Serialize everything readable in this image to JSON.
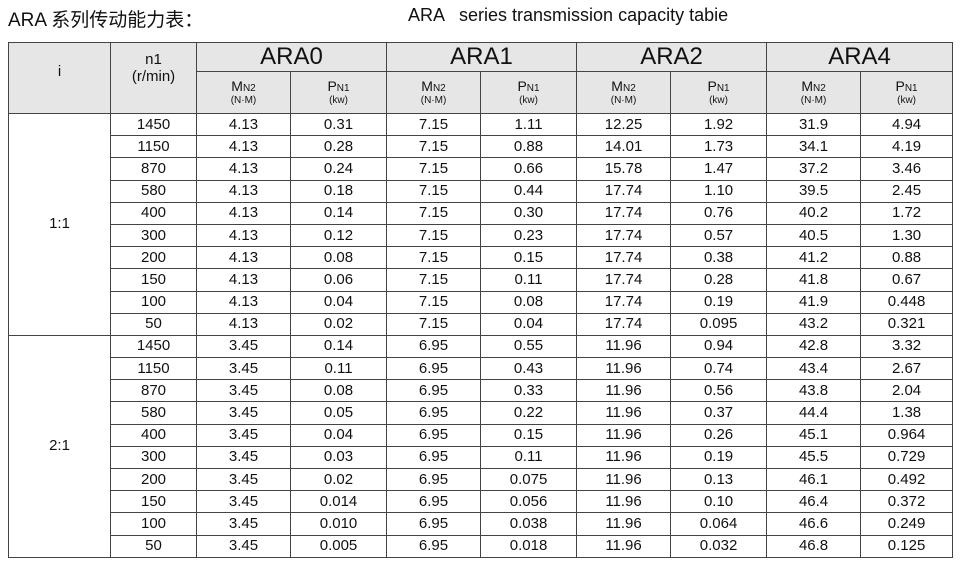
{
  "header": {
    "title_cn": "ARA 系列传动能力表：",
    "title_en": "ARA   series transmission capacity tabie"
  },
  "table": {
    "col_i": "i",
    "col_n1": "n1",
    "col_n1_unit": "(r/min)",
    "models": [
      "ARA0",
      "ARA1",
      "ARA2",
      "ARA4"
    ],
    "sub_headers": [
      {
        "symbol": "M",
        "subscript": "N2",
        "unit": "(N·M)"
      },
      {
        "symbol": "P",
        "subscript": "N1",
        "unit": "(kw)"
      }
    ],
    "groups": [
      {
        "ratio": "1:1",
        "rows": [
          [
            "1450",
            "4.13",
            "0.31",
            "7.15",
            "1.11",
            "12.25",
            "1.92",
            "31.9",
            "4.94"
          ],
          [
            "1150",
            "4.13",
            "0.28",
            "7.15",
            "0.88",
            "14.01",
            "1.73",
            "34.1",
            "4.19"
          ],
          [
            "870",
            "4.13",
            "0.24",
            "7.15",
            "0.66",
            "15.78",
            "1.47",
            "37.2",
            "3.46"
          ],
          [
            "580",
            "4.13",
            "0.18",
            "7.15",
            "0.44",
            "17.74",
            "1.10",
            "39.5",
            "2.45"
          ],
          [
            "400",
            "4.13",
            "0.14",
            "7.15",
            "0.30",
            "17.74",
            "0.76",
            "40.2",
            "1.72"
          ],
          [
            "300",
            "4.13",
            "0.12",
            "7.15",
            "0.23",
            "17.74",
            "0.57",
            "40.5",
            "1.30"
          ],
          [
            "200",
            "4.13",
            "0.08",
            "7.15",
            "0.15",
            "17.74",
            "0.38",
            "41.2",
            "0.88"
          ],
          [
            "150",
            "4.13",
            "0.06",
            "7.15",
            "0.11",
            "17.74",
            "0.28",
            "41.8",
            "0.67"
          ],
          [
            "100",
            "4.13",
            "0.04",
            "7.15",
            "0.08",
            "17.74",
            "0.19",
            "41.9",
            "0.448"
          ],
          [
            "50",
            "4.13",
            "0.02",
            "7.15",
            "0.04",
            "17.74",
            "0.095",
            "43.2",
            "0.321"
          ]
        ]
      },
      {
        "ratio": "2:1",
        "rows": [
          [
            "1450",
            "3.45",
            "0.14",
            "6.95",
            "0.55",
            "11.96",
            "0.94",
            "42.8",
            "3.32"
          ],
          [
            "1150",
            "3.45",
            "0.11",
            "6.95",
            "0.43",
            "11.96",
            "0.74",
            "43.4",
            "2.67"
          ],
          [
            "870",
            "3.45",
            "0.08",
            "6.95",
            "0.33",
            "11.96",
            "0.56",
            "43.8",
            "2.04"
          ],
          [
            "580",
            "3.45",
            "0.05",
            "6.95",
            "0.22",
            "11.96",
            "0.37",
            "44.4",
            "1.38"
          ],
          [
            "400",
            "3.45",
            "0.04",
            "6.95",
            "0.15",
            "11.96",
            "0.26",
            "45.1",
            "0.964"
          ],
          [
            "300",
            "3.45",
            "0.03",
            "6.95",
            "0.11",
            "11.96",
            "0.19",
            "45.5",
            "0.729"
          ],
          [
            "200",
            "3.45",
            "0.02",
            "6.95",
            "0.075",
            "11.96",
            "0.13",
            "46.1",
            "0.492"
          ],
          [
            "150",
            "3.45",
            "0.014",
            "6.95",
            "0.056",
            "11.96",
            "0.10",
            "46.4",
            "0.372"
          ],
          [
            "100",
            "3.45",
            "0.010",
            "6.95",
            "0.038",
            "11.96",
            "0.064",
            "46.6",
            "0.249"
          ],
          [
            "50",
            "3.45",
            "0.005",
            "6.95",
            "0.018",
            "11.96",
            "0.032",
            "46.8",
            "0.125"
          ]
        ]
      }
    ]
  }
}
